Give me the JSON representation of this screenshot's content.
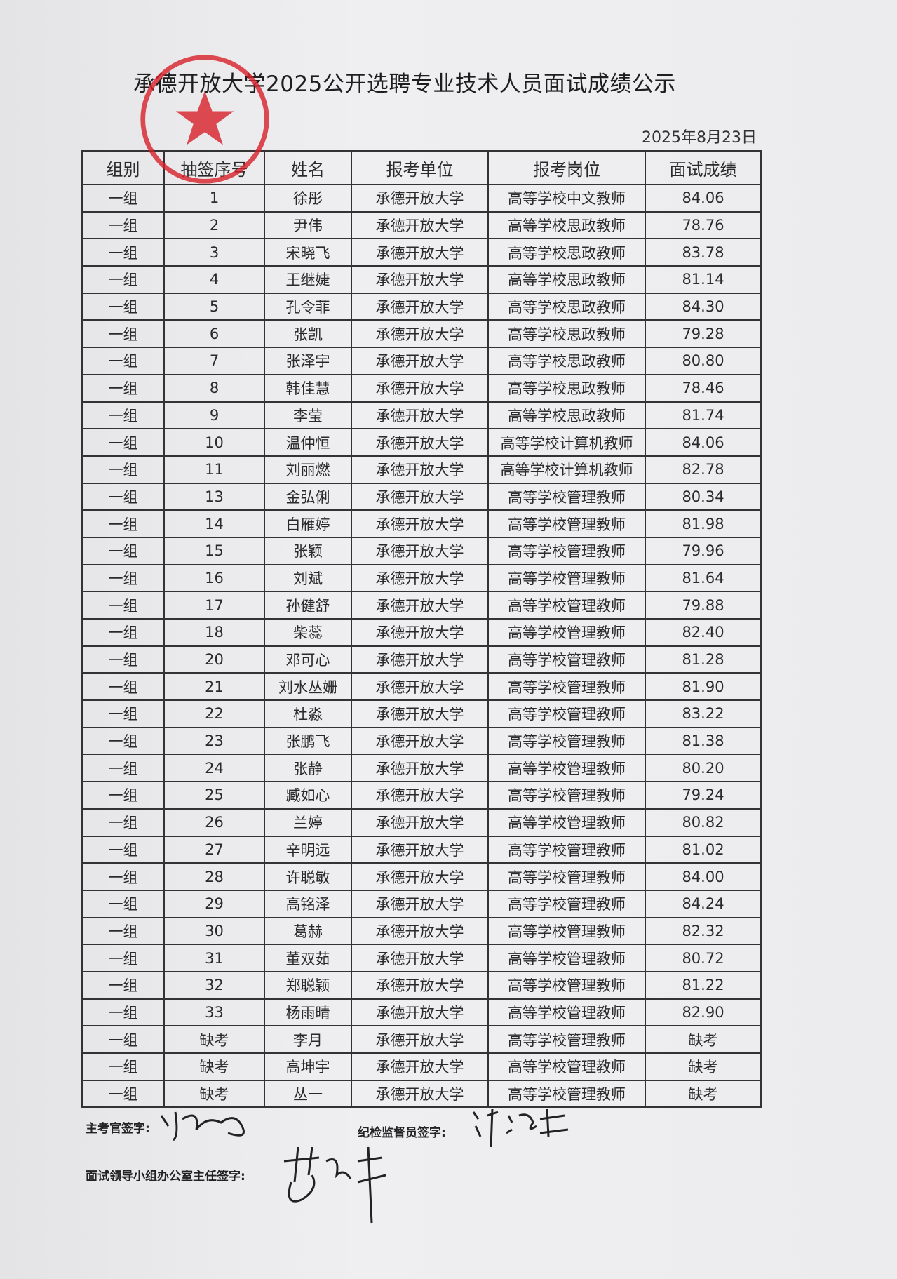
{
  "title": "承德开放大学2025公开选聘专业技术人员面试成绩公示",
  "date": "2025年8月23日",
  "headers": [
    "组别",
    "抽签序号",
    "姓名",
    "报考单位",
    "报考岗位",
    "面试成绩"
  ],
  "rows": [
    [
      "一组",
      "1",
      "徐彤",
      "承德开放大学",
      "高等学校中文教师",
      "84.06"
    ],
    [
      "一组",
      "2",
      "尹伟",
      "承德开放大学",
      "高等学校思政教师",
      "78.76"
    ],
    [
      "一组",
      "3",
      "宋晓飞",
      "承德开放大学",
      "高等学校思政教师",
      "83.78"
    ],
    [
      "一组",
      "4",
      "王继婕",
      "承德开放大学",
      "高等学校思政教师",
      "81.14"
    ],
    [
      "一组",
      "5",
      "孔令菲",
      "承德开放大学",
      "高等学校思政教师",
      "84.30"
    ],
    [
      "一组",
      "6",
      "张凯",
      "承德开放大学",
      "高等学校思政教师",
      "79.28"
    ],
    [
      "一组",
      "7",
      "张泽宇",
      "承德开放大学",
      "高等学校思政教师",
      "80.80"
    ],
    [
      "一组",
      "8",
      "韩佳慧",
      "承德开放大学",
      "高等学校思政教师",
      "78.46"
    ],
    [
      "一组",
      "9",
      "李莹",
      "承德开放大学",
      "高等学校思政教师",
      "81.74"
    ],
    [
      "一组",
      "10",
      "温仲恒",
      "承德开放大学",
      "高等学校计算机教师",
      "84.06"
    ],
    [
      "一组",
      "11",
      "刘丽燃",
      "承德开放大学",
      "高等学校计算机教师",
      "82.78"
    ],
    [
      "一组",
      "13",
      "金弘俐",
      "承德开放大学",
      "高等学校管理教师",
      "80.34"
    ],
    [
      "一组",
      "14",
      "白雁婷",
      "承德开放大学",
      "高等学校管理教师",
      "81.98"
    ],
    [
      "一组",
      "15",
      "张颖",
      "承德开放大学",
      "高等学校管理教师",
      "79.96"
    ],
    [
      "一组",
      "16",
      "刘斌",
      "承德开放大学",
      "高等学校管理教师",
      "81.64"
    ],
    [
      "一组",
      "17",
      "孙健舒",
      "承德开放大学",
      "高等学校管理教师",
      "79.88"
    ],
    [
      "一组",
      "18",
      "柴蕊",
      "承德开放大学",
      "高等学校管理教师",
      "82.40"
    ],
    [
      "一组",
      "20",
      "邓可心",
      "承德开放大学",
      "高等学校管理教师",
      "81.28"
    ],
    [
      "一组",
      "21",
      "刘水丛姗",
      "承德开放大学",
      "高等学校管理教师",
      "81.90"
    ],
    [
      "一组",
      "22",
      "杜淼",
      "承德开放大学",
      "高等学校管理教师",
      "83.22"
    ],
    [
      "一组",
      "23",
      "张鹏飞",
      "承德开放大学",
      "高等学校管理教师",
      "81.38"
    ],
    [
      "一组",
      "24",
      "张静",
      "承德开放大学",
      "高等学校管理教师",
      "80.20"
    ],
    [
      "一组",
      "25",
      "臧如心",
      "承德开放大学",
      "高等学校管理教师",
      "79.24"
    ],
    [
      "一组",
      "26",
      "兰婷",
      "承德开放大学",
      "高等学校管理教师",
      "80.82"
    ],
    [
      "一组",
      "27",
      "辛明远",
      "承德开放大学",
      "高等学校管理教师",
      "81.02"
    ],
    [
      "一组",
      "28",
      "许聪敏",
      "承德开放大学",
      "高等学校管理教师",
      "84.00"
    ],
    [
      "一组",
      "29",
      "高铭泽",
      "承德开放大学",
      "高等学校管理教师",
      "84.24"
    ],
    [
      "一组",
      "30",
      "葛赫",
      "承德开放大学",
      "高等学校管理教师",
      "82.32"
    ],
    [
      "一组",
      "31",
      "董双茹",
      "承德开放大学",
      "高等学校管理教师",
      "80.72"
    ],
    [
      "一组",
      "32",
      "郑聪颖",
      "承德开放大学",
      "高等学校管理教师",
      "81.22"
    ],
    [
      "一组",
      "33",
      "杨雨晴",
      "承德开放大学",
      "高等学校管理教师",
      "82.90"
    ],
    [
      "一组",
      "缺考",
      "李月",
      "承德开放大学",
      "高等学校管理教师",
      "缺考"
    ],
    [
      "一组",
      "缺考",
      "高坤宇",
      "承德开放大学",
      "高等学校管理教师",
      "缺考"
    ],
    [
      "一组",
      "缺考",
      "丛一",
      "承德开放大学",
      "高等学校管理教师",
      "缺考"
    ]
  ],
  "signatures": {
    "chief_examiner": "主考官签字:",
    "supervisor": "纪检监督员签字:",
    "office_director": "面试领导小组办公室主任签字:"
  },
  "colors": {
    "stamp": "#d8202a",
    "ink": "#222222"
  }
}
